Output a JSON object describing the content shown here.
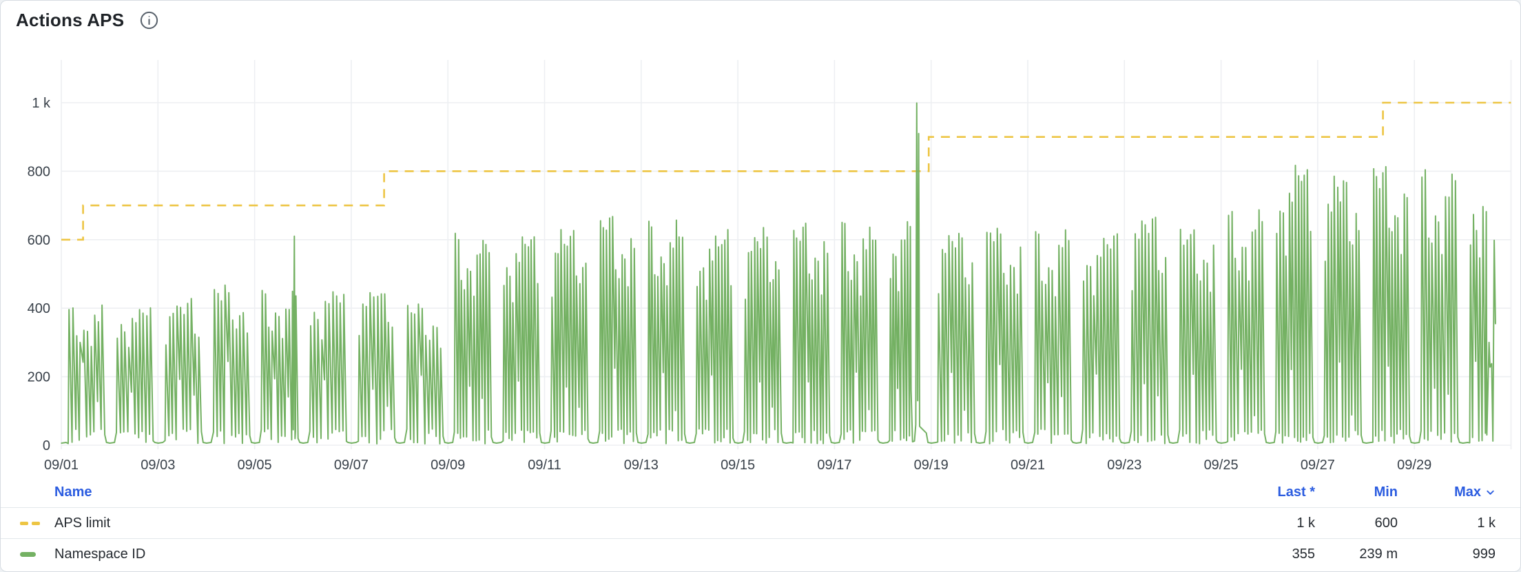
{
  "header": {
    "title": "Actions APS"
  },
  "legend": {
    "columns": {
      "name": "Name",
      "last": "Last *",
      "min": "Min",
      "max": "Max"
    },
    "sorted_by": "max",
    "sort_direction": "desc",
    "rows": [
      {
        "name": "APS limit",
        "swatch": "yellow-dashed",
        "last": "1 k",
        "min": "600",
        "max": "1 k"
      },
      {
        "name": "Namespace ID",
        "swatch": "green-solid",
        "last": "355",
        "min": "239 m",
        "max": "999"
      }
    ]
  },
  "colors": {
    "accent_blue": "#2b5ce0",
    "series_green": "#74b163",
    "series_yellow": "#edc543",
    "grid": "#edeff2",
    "axis_text": "#39414a",
    "title_text": "#1f2328",
    "separator": "#e3e7eb",
    "card_border": "#d6dce2",
    "page_bg": "#eef1f4"
  },
  "chart_data": {
    "type": "line",
    "title": "Actions APS",
    "grid": true,
    "legend_position": "bottom-table",
    "x_axis": {
      "start_date": "09/01",
      "days_total": 30,
      "tick_days": [
        0,
        2,
        4,
        6,
        8,
        10,
        12,
        14,
        16,
        18,
        20,
        22,
        24,
        26,
        28
      ],
      "tick_labels": [
        "09/01",
        "09/03",
        "09/05",
        "09/07",
        "09/09",
        "09/11",
        "09/13",
        "09/15",
        "09/17",
        "09/19",
        "09/21",
        "09/23",
        "09/25",
        "09/27",
        "09/29"
      ],
      "right_boundary_day": 30
    },
    "y_axis": {
      "tick_values": [
        0,
        200,
        400,
        600,
        800,
        1000
      ],
      "tick_labels": [
        "0",
        "200",
        "400",
        "600",
        "800",
        "1 k"
      ],
      "range": [
        0,
        1060
      ]
    },
    "series": [
      {
        "name": "APS limit",
        "style": "dashed",
        "color": "#edc543",
        "stats": {
          "last": "1 k",
          "min": "600",
          "max": "1 k"
        },
        "step_points": [
          [
            0,
            600
          ],
          [
            0.45,
            600
          ],
          [
            0.45,
            700
          ],
          [
            6.68,
            700
          ],
          [
            6.68,
            800
          ],
          [
            17.95,
            800
          ],
          [
            17.95,
            900
          ],
          [
            27.35,
            900
          ],
          [
            27.35,
            1000
          ],
          [
            30,
            1000
          ]
        ]
      },
      {
        "name": "Namespace ID",
        "style": "solid",
        "color": "#74b163",
        "stats": {
          "last": "355",
          "min": "239 m",
          "max": "999"
        },
        "pattern": {
          "seed": 11,
          "daily_peaks": [
            410,
            415,
            425,
            465,
            450,
            455,
            460,
            415,
            625,
            615,
            635,
            665,
            660,
            625,
            635,
            645,
            650,
            670,
            630,
            640,
            635,
            630,
            665,
            635,
            700,
            820,
            790,
            815,
            800,
            790
          ],
          "spikes_per_day": [
            10,
            10,
            10,
            10,
            11,
            10,
            10,
            10,
            12,
            12,
            12,
            12,
            12,
            12,
            12,
            12,
            12,
            8,
            11,
            11,
            11,
            11,
            11,
            11,
            11,
            12,
            12,
            12,
            11,
            6
          ],
          "peak_weights": [
            1.0,
            0.83,
            0.96,
            0.76,
            0.9,
            1.0,
            0.7,
            0.94,
            0.85,
            0.99,
            0.78,
            0.92
          ],
          "spike_rise": 0.018,
          "day_start": 0.125,
          "day_span": 0.76,
          "span_by_day": {
            "17": 0.47,
            "29": 0.4
          },
          "base_low": 8,
          "start_flat": 0.1,
          "mid_hump_level": 190,
          "extra_points": [
            [
              4.8,
              45
            ],
            [
              4.822,
              610
            ],
            [
              4.845,
              40
            ],
            [
              17.585,
              160
            ],
            [
              17.615,
              10
            ],
            [
              17.655,
              12
            ],
            [
              17.682,
              60
            ],
            [
              17.702,
              999
            ],
            [
              17.722,
              130
            ],
            [
              17.742,
              910
            ],
            [
              17.762,
              55
            ],
            [
              29.5,
              30
            ],
            [
              29.545,
              300
            ],
            [
              29.565,
              228
            ],
            [
              29.6,
              238
            ],
            [
              29.625,
              12
            ],
            [
              29.652,
              598
            ],
            [
              29.678,
              355
            ]
          ]
        }
      }
    ]
  }
}
